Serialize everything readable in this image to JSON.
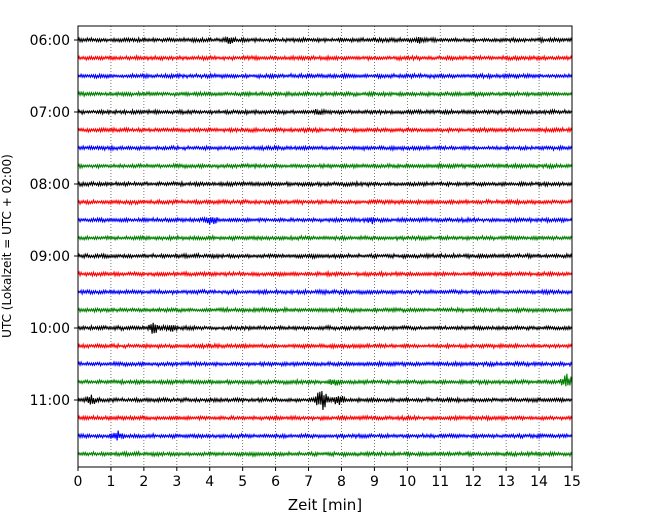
{
  "chart_data": {
    "type": "line",
    "subtype": "helicorder",
    "xlabel": "Zeit  [min]",
    "ylabel": "UTC (Lokalzeit = UTC + 02:00)",
    "xlim": [
      0,
      15
    ],
    "x_ticks": [
      0,
      1,
      2,
      3,
      4,
      5,
      6,
      7,
      8,
      9,
      10,
      11,
      12,
      13,
      14,
      15
    ],
    "x_tick_labels": [
      "0",
      "1",
      "2",
      "3",
      "4",
      "5",
      "6",
      "7",
      "8",
      "9",
      "10",
      "11",
      "12",
      "13",
      "14",
      "15"
    ],
    "vertical_grid": "dotted at each minute",
    "trace_interval_min": 15,
    "trace_color_cycle": [
      "#000000",
      "#ff0000",
      "#0000ff",
      "#008000"
    ],
    "y_tick_labels": [
      "06:00",
      "07:00",
      "08:00",
      "09:00",
      "10:00",
      "11:00"
    ],
    "trace_start_times_utc": [
      "06:00",
      "06:15",
      "06:30",
      "06:45",
      "07:00",
      "07:15",
      "07:30",
      "07:45",
      "08:00",
      "08:15",
      "08:30",
      "08:45",
      "09:00",
      "09:15",
      "09:30",
      "09:45",
      "10:00",
      "10:15",
      "10:30",
      "10:45",
      "11:00",
      "11:15",
      "11:30",
      "11:45"
    ],
    "events": [
      {
        "trace": "06:00",
        "minute": 4.6,
        "amp": 0.18
      },
      {
        "trace": "06:00",
        "minute": 10.4,
        "amp": 0.15
      },
      {
        "trace": "07:00",
        "minute": 7.3,
        "amp": 0.14
      },
      {
        "trace": "08:30",
        "minute": 4.05,
        "amp": 0.3
      },
      {
        "trace": "08:30",
        "minute": 8.9,
        "amp": 0.18
      },
      {
        "trace": "10:00",
        "minute": 2.3,
        "amp": 0.35
      },
      {
        "trace": "10:00",
        "minute": 2.8,
        "amp": 0.2
      },
      {
        "trace": "10:45",
        "minute": 7.8,
        "amp": 0.22
      },
      {
        "trace": "10:45",
        "minute": 14.85,
        "amp": 0.45
      },
      {
        "trace": "11:00",
        "minute": 0.4,
        "amp": 0.3
      },
      {
        "trace": "11:00",
        "minute": 7.4,
        "amp": 0.75
      },
      {
        "trace": "11:00",
        "minute": 7.9,
        "amp": 0.3
      },
      {
        "trace": "11:30",
        "minute": 1.2,
        "amp": 0.25
      }
    ]
  }
}
